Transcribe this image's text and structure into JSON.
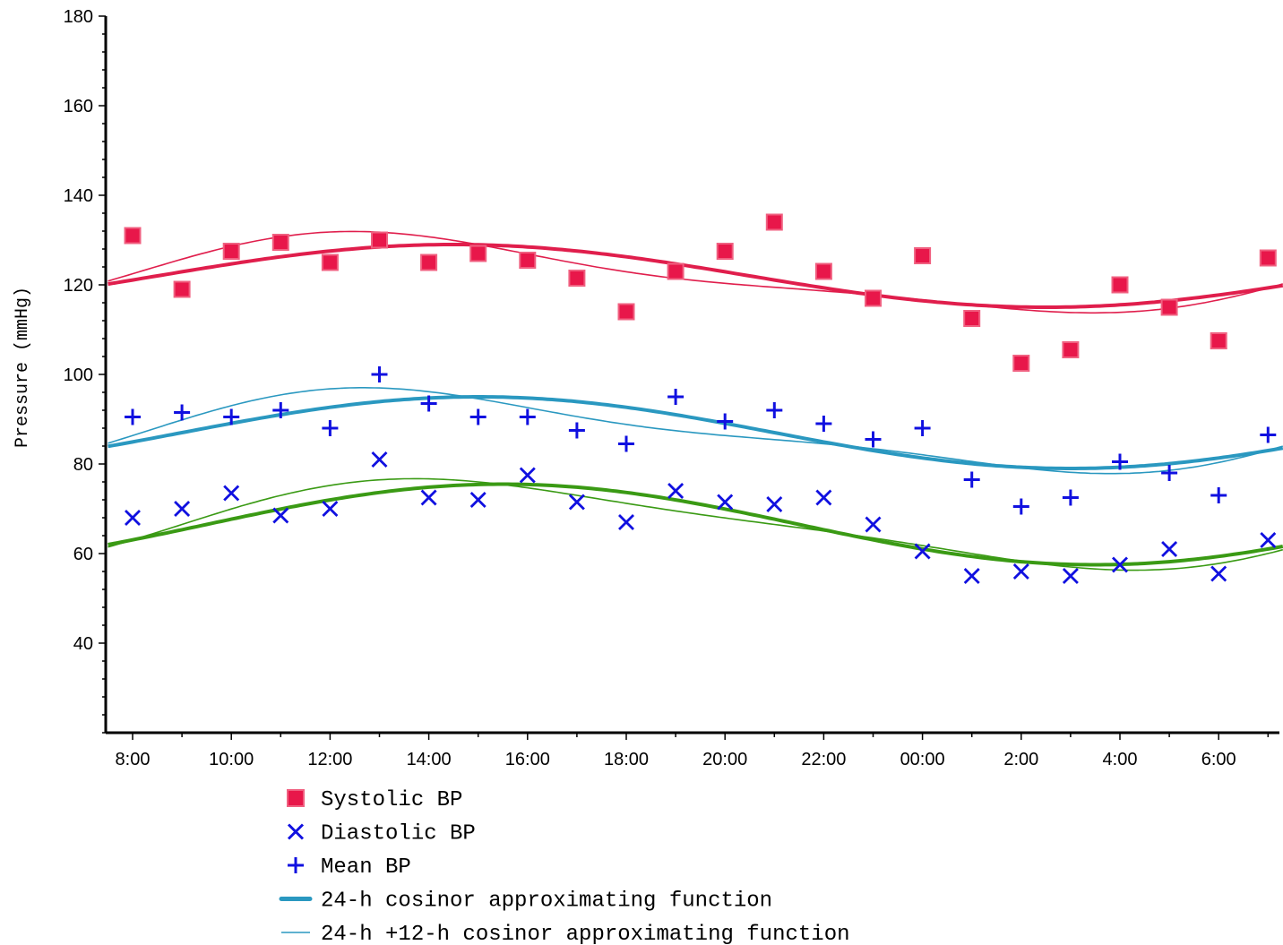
{
  "chart_data": {
    "type": "scatter",
    "title": "",
    "ylabel": "Pressure (mmHg)",
    "xlabel": "",
    "ylim": [
      20,
      180
    ],
    "yticks": [
      40,
      60,
      80,
      100,
      120,
      140,
      160,
      180
    ],
    "x_unit": "hours elapsed from 8:00",
    "xlim": [
      -0.5,
      23.35
    ],
    "x_ticks": [
      {
        "x": 0,
        "label": "8:00"
      },
      {
        "x": 2,
        "label": "10:00"
      },
      {
        "x": 4,
        "label": "12:00"
      },
      {
        "x": 6,
        "label": "14:00"
      },
      {
        "x": 8,
        "label": "16:00"
      },
      {
        "x": 10,
        "label": "18:00"
      },
      {
        "x": 12,
        "label": "20:00"
      },
      {
        "x": 14,
        "label": "22:00"
      },
      {
        "x": 16,
        "label": "00:00"
      },
      {
        "x": 18,
        "label": "2:00"
      },
      {
        "x": 20,
        "label": "4:00"
      },
      {
        "x": 22,
        "label": "6:00"
      }
    ],
    "grid": false,
    "legend_position": "bottom",
    "colors": {
      "systolic": "#e8174a",
      "systolic_line": "#e01e4c",
      "diastolic": "#1010e0",
      "mean": "#1010e0",
      "diastolic_line": "#3a9a14",
      "mean_line": "#2a98c0",
      "legend_line": "#2a98c0"
    },
    "series": [
      {
        "name": "Systolic BP",
        "marker": "square",
        "x": [
          0,
          1,
          2,
          3,
          4,
          5,
          6,
          7,
          8,
          9,
          10,
          11,
          12,
          13,
          14,
          15,
          16,
          17,
          18,
          19,
          20,
          21,
          22,
          23
        ],
        "y": [
          131,
          119,
          127.5,
          129.5,
          125,
          130,
          125,
          127,
          125.5,
          121.5,
          114,
          123,
          127.5,
          134,
          123,
          117,
          126.5,
          112.5,
          102.5,
          105.5,
          120,
          115,
          107.5,
          126
        ]
      },
      {
        "name": "Diastolic BP",
        "marker": "x",
        "x": [
          0,
          1,
          2,
          3,
          4,
          5,
          6,
          7,
          8,
          9,
          10,
          11,
          12,
          13,
          14,
          15,
          16,
          17,
          18,
          19,
          20,
          21,
          22,
          23
        ],
        "y": [
          68,
          70,
          73.5,
          68.5,
          70,
          81,
          72.5,
          72,
          77.5,
          71.5,
          67,
          74,
          71.5,
          71,
          72.5,
          66.5,
          60.5,
          55,
          56,
          55,
          57.5,
          61,
          55.5,
          63
        ]
      },
      {
        "name": "Mean BP",
        "marker": "plus",
        "x": [
          0,
          1,
          2,
          3,
          4,
          5,
          6,
          7,
          8,
          9,
          10,
          11,
          12,
          13,
          14,
          15,
          16,
          17,
          18,
          19,
          20,
          21,
          22,
          23
        ],
        "y": [
          90.5,
          91.5,
          90.5,
          92,
          88,
          100,
          93.5,
          90.5,
          90.5,
          87.5,
          84.5,
          95,
          89.5,
          92,
          89,
          85.5,
          88,
          76.5,
          70.5,
          72.5,
          80.5,
          78,
          73,
          86.5
        ]
      }
    ],
    "fits": [
      {
        "of": "Systolic BP",
        "kind": "24-h cosinor",
        "mesor": 122,
        "amp24": 7,
        "peak24": 6.5,
        "amp12": 0,
        "peak12": 0
      },
      {
        "of": "Systolic BP",
        "kind": "24-h +12-h cosinor",
        "mesor": 122,
        "amp24": 8.2,
        "peak24": 5.5,
        "amp12": 2.3,
        "peak12": 3.5
      },
      {
        "of": "Mean BP",
        "kind": "24-h cosinor",
        "mesor": 87,
        "amp24": 8,
        "peak24": 7.0,
        "amp12": 0,
        "peak12": 0
      },
      {
        "of": "Mean BP",
        "kind": "24-h +12-h cosinor",
        "mesor": 87,
        "amp24": 8.5,
        "peak24": 6.0,
        "amp12": 2.5,
        "peak12": 3.5
      },
      {
        "of": "Diastolic BP",
        "kind": "24-h cosinor",
        "mesor": 66.5,
        "amp24": 9,
        "peak24": 7.5,
        "amp12": 0,
        "peak12": 0
      },
      {
        "of": "Diastolic BP",
        "kind": "24-h +12-h cosinor",
        "mesor": 66.5,
        "amp24": 9.5,
        "peak24": 7.0,
        "amp12": 2.0,
        "peak12": 4.0
      }
    ],
    "legend": [
      {
        "label": "Systolic BP",
        "symbol": "square"
      },
      {
        "label": "Diastolic BP",
        "symbol": "x"
      },
      {
        "label": "Mean BP",
        "symbol": "plus"
      },
      {
        "label": "24-h cosinor approximating function",
        "symbol": "thick-line"
      },
      {
        "label": "24-h +12-h cosinor approximating function",
        "symbol": "thin-line"
      }
    ]
  }
}
